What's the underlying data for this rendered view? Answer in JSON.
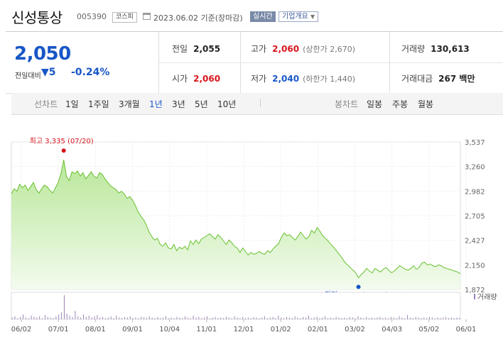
{
  "header": {
    "name": "신성통상",
    "code": "005390",
    "market_badge": "코스피",
    "date_text": "2023.06.02 기준(장마감)",
    "realtime_label": "실시간",
    "company_info_label": "기업개요"
  },
  "summary": {
    "price": "2,050",
    "change_label": "전일대비",
    "change_value": "5",
    "change_pct": "-0.24%",
    "prev_close_label": "전일",
    "prev_close": "2,055",
    "high_label": "고가",
    "high": "2,060",
    "upper_limit": "(상한가 2,670)",
    "volume_label": "거래량",
    "volume": "130,613",
    "open_label": "시가",
    "open": "2,060",
    "low_label": "저가",
    "low": "2,040",
    "lower_limit": "(하한가 1,440)",
    "amount_label": "거래대금",
    "amount": "267 백만"
  },
  "tabs": {
    "line_label": "선차트",
    "line_items": [
      "1일",
      "1주일",
      "3개월",
      "1년",
      "3년",
      "5년",
      "10년"
    ],
    "line_selected": "1년",
    "candle_label": "봉차트",
    "candle_items": [
      "일봉",
      "주봉",
      "월봉"
    ]
  },
  "colors": {
    "down": "#1856c7",
    "up": "#d8161d",
    "area": "#b9e79a",
    "line": "#67c02f"
  },
  "chart_data": {
    "type": "area",
    "y_ticks": [
      "3,537",
      "3,260",
      "2,982",
      "2,705",
      "2,427",
      "2,150",
      "1,872"
    ],
    "ylim": [
      1872,
      3537
    ],
    "x_ticks": [
      "06/02",
      "07/01",
      "08/01",
      "09/01",
      "10/04",
      "11/01",
      "12/01",
      "01/02",
      "02/01",
      "03/02",
      "04/03",
      "05/02",
      "06/01"
    ],
    "high_annotation": "최고 3,335 (07/20)",
    "low_annotation": "최저 2,005 (03/27)",
    "high_point": {
      "x": "07/20",
      "y": 3335
    },
    "low_point": {
      "x": "03/27",
      "y": 2005
    },
    "volume_legend": "거래량",
    "series": [
      {
        "values": [
          2950,
          3010,
          2980,
          3060,
          3020,
          3050,
          2990,
          3030,
          3080,
          3000,
          2960,
          3010,
          3050,
          3030,
          2990,
          2960,
          3020,
          3080,
          3180,
          3335,
          3150,
          3100,
          3200,
          3180,
          3210,
          3150,
          3190,
          3120,
          3160,
          3200,
          3150,
          3130,
          3190,
          3170,
          3120,
          3080,
          3040,
          3020,
          3000,
          2960,
          2980,
          2950,
          2900,
          2920,
          2880,
          2820,
          2750,
          2700,
          2660,
          2600,
          2520,
          2470,
          2430,
          2450,
          2380,
          2360,
          2400,
          2340,
          2330,
          2380,
          2310,
          2350,
          2330,
          2360,
          2320,
          2420,
          2380,
          2430,
          2390,
          2440,
          2460,
          2480,
          2500,
          2470,
          2440,
          2490,
          2460,
          2420,
          2380,
          2430,
          2400,
          2360,
          2340,
          2290,
          2340,
          2300,
          2260,
          2290,
          2270,
          2280,
          2300,
          2280,
          2270,
          2310,
          2290,
          2330,
          2360,
          2390,
          2460,
          2510,
          2480,
          2490,
          2460,
          2430,
          2470,
          2520,
          2480,
          2440,
          2470,
          2540,
          2510,
          2570,
          2530,
          2480,
          2450,
          2420,
          2380,
          2350,
          2310,
          2270,
          2230,
          2180,
          2150,
          2120,
          2090,
          2060,
          2005,
          2040,
          2070,
          2110,
          2080,
          2060,
          2110,
          2090,
          2070,
          2100,
          2120,
          2090,
          2060,
          2080,
          2110,
          2140,
          2120,
          2100,
          2090,
          2110,
          2140,
          2100,
          2120,
          2170,
          2180,
          2150,
          2160,
          2140,
          2130,
          2150,
          2140,
          2120,
          2110,
          2100,
          2090,
          2080,
          2070,
          2050
        ]
      }
    ],
    "volume_values": [
      3,
      5,
      2,
      4,
      8,
      3,
      2,
      6,
      4,
      3,
      5,
      2,
      7,
      4,
      3,
      2,
      5,
      8,
      12,
      40,
      9,
      6,
      4,
      14,
      5,
      3,
      8,
      4,
      6,
      3,
      5,
      7,
      3,
      4,
      2,
      3,
      5,
      2,
      6,
      3,
      2,
      4,
      3,
      5,
      2,
      3,
      2,
      4,
      3,
      2,
      5,
      3,
      2,
      4,
      2,
      3,
      5,
      2,
      3,
      2,
      4,
      3,
      2,
      5,
      3,
      2,
      6,
      3,
      4,
      2,
      3,
      5,
      2,
      3,
      4,
      2,
      3,
      2,
      4,
      3,
      2,
      5,
      3,
      2,
      4,
      2,
      3,
      2,
      4,
      3,
      2,
      3,
      5,
      2,
      3,
      4,
      2,
      6,
      3,
      2,
      4,
      3,
      2,
      5,
      3,
      2,
      4,
      3,
      6,
      2,
      3,
      4,
      2,
      3,
      5,
      2,
      3,
      2,
      4,
      3,
      2,
      3,
      2,
      4,
      3,
      2,
      5,
      3,
      2,
      4,
      2,
      3,
      2,
      3,
      4,
      2,
      3,
      2,
      4,
      3,
      2,
      5,
      3,
      2,
      7,
      3,
      2,
      4,
      3,
      2,
      3,
      2,
      4,
      3,
      2,
      3,
      2,
      3,
      4,
      2,
      3,
      2,
      3,
      2
    ]
  }
}
